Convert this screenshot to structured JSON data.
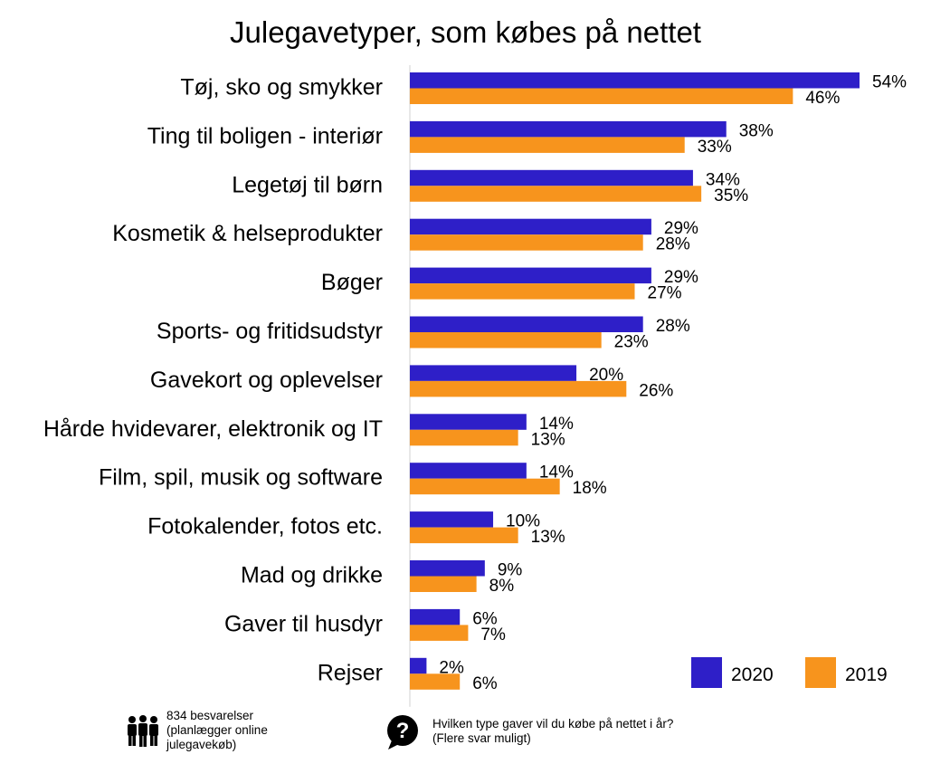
{
  "chart_data": {
    "type": "bar",
    "orientation": "horizontal",
    "title": "Julegavetyper, som købes på nettet",
    "categories": [
      "Tøj, sko og smykker",
      "Ting til boligen - interiør",
      "Legetøj til børn",
      "Kosmetik & helseprodukter",
      "Bøger",
      "Sports- og fritidsudstyr",
      "Gavekort og oplevelser",
      "Hårde hvidevarer, elektronik og IT",
      "Film, spil, musik og software",
      "Fotokalender, fotos etc.",
      "Mad og drikke",
      "Gaver til husdyr",
      "Rejser"
    ],
    "series": [
      {
        "name": "2020",
        "color": "#2e1fc8",
        "values": [
          54,
          38,
          34,
          29,
          29,
          28,
          20,
          14,
          14,
          10,
          9,
          6,
          2
        ]
      },
      {
        "name": "2019",
        "color": "#f7941d",
        "values": [
          46,
          33,
          35,
          28,
          27,
          23,
          26,
          13,
          18,
          13,
          8,
          7,
          6
        ]
      }
    ],
    "value_suffix": "%",
    "xlim": [
      0,
      54
    ],
    "grid": false,
    "legend_position": "bottom-right"
  },
  "footer": {
    "respondents_icon": "people-icon",
    "respondents_lines": [
      "834 besvarelser",
      "(planlægger online",
      "julegavekøb)"
    ],
    "question_icon": "question-bubble-icon",
    "question_lines": [
      "Hvilken type gaver vil du købe på nettet i år?",
      "(Flere svar muligt)"
    ]
  }
}
